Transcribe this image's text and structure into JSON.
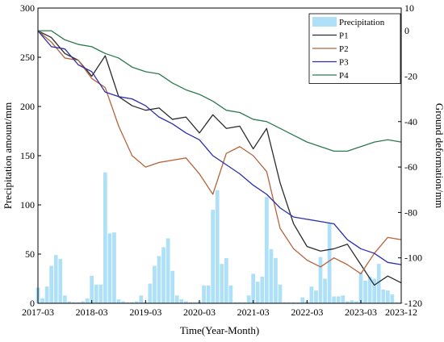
{
  "chart_data": {
    "type": "bar+line",
    "title": "",
    "xlabel": "Time(Year-Month)",
    "ylabel_left": "Precipitation amount/mm",
    "ylabel_right": "Ground deformation/mm",
    "ylim_left": [
      0,
      300
    ],
    "ylim_right": [
      -120,
      10
    ],
    "yticks_left": [
      0,
      50,
      100,
      150,
      200,
      250,
      300
    ],
    "yticks_right": [
      -120,
      -100,
      -80,
      -60,
      -40,
      -20,
      0,
      10
    ],
    "xlim": [
      "2017-03",
      "2023-12"
    ],
    "xticks": [
      "2017-03",
      "2018-03",
      "2019-03",
      "2020-03",
      "2021-03",
      "2022-03",
      "2023-03",
      "2023-12"
    ],
    "grid": false,
    "legend_position": "top-right",
    "bar_series": {
      "name": "Precipitation",
      "color": "#aee0f7",
      "x": [
        "2017-03",
        "2017-04",
        "2017-05",
        "2017-06",
        "2017-07",
        "2017-08",
        "2017-09",
        "2017-10",
        "2017-11",
        "2017-12",
        "2018-01",
        "2018-02",
        "2018-03",
        "2018-04",
        "2018-05",
        "2018-06",
        "2018-07",
        "2018-08",
        "2018-09",
        "2018-10",
        "2018-11",
        "2018-12",
        "2019-01",
        "2019-02",
        "2019-03",
        "2019-04",
        "2019-05",
        "2019-06",
        "2019-07",
        "2019-08",
        "2019-09",
        "2019-10",
        "2019-11",
        "2019-12",
        "2020-01",
        "2020-02",
        "2020-03",
        "2020-04",
        "2020-05",
        "2020-06",
        "2020-07",
        "2020-08",
        "2020-09",
        "2020-10",
        "2020-11",
        "2020-12",
        "2021-01",
        "2021-02",
        "2021-03",
        "2021-04",
        "2021-05",
        "2021-06",
        "2021-07",
        "2021-08",
        "2021-09",
        "2021-10",
        "2021-11",
        "2021-12",
        "2022-01",
        "2022-02",
        "2022-03",
        "2022-04",
        "2022-05",
        "2022-06",
        "2022-07",
        "2022-08",
        "2022-09",
        "2022-10",
        "2022-11",
        "2022-12",
        "2023-01",
        "2023-02",
        "2023-03",
        "2023-04",
        "2023-05",
        "2023-06",
        "2023-07",
        "2023-08",
        "2023-09",
        "2023-10",
        "2023-11",
        "2023-12"
      ],
      "values": [
        16,
        5,
        17,
        38,
        49,
        45,
        8,
        2,
        1,
        1,
        2,
        5,
        28,
        19,
        19,
        133,
        71,
        72,
        4,
        2,
        1,
        1,
        2,
        8,
        1,
        20,
        38,
        48,
        57,
        66,
        33,
        8,
        4,
        2,
        1,
        1,
        2,
        18,
        18,
        95,
        115,
        40,
        46,
        18,
        1,
        1,
        1,
        8,
        30,
        22,
        27,
        108,
        55,
        46,
        19,
        1,
        1,
        1,
        1,
        6,
        2,
        17,
        13,
        47,
        25,
        82,
        7,
        7,
        8,
        2,
        3,
        2,
        31,
        23,
        27,
        25,
        40,
        14,
        13,
        9,
        1,
        1
      ]
    },
    "line_series": [
      {
        "name": "P1",
        "color": "#2b2b2b",
        "x": [
          "2017-03",
          "2017-06",
          "2017-09",
          "2017-12",
          "2018-03",
          "2018-06",
          "2018-09",
          "2018-12",
          "2019-03",
          "2019-06",
          "2019-09",
          "2019-12",
          "2020-03",
          "2020-06",
          "2020-09",
          "2020-12",
          "2021-03",
          "2021-06",
          "2021-09",
          "2021-12",
          "2022-03",
          "2022-06",
          "2022-09",
          "2022-12",
          "2023-03",
          "2023-06",
          "2023-09",
          "2023-12"
        ],
        "values": [
          0,
          -3,
          -10,
          -13,
          -20,
          -11,
          -29,
          -33,
          -35,
          -34,
          -39,
          -38,
          -45,
          -37,
          -43,
          -42,
          -52,
          -43,
          -67,
          -85,
          -95,
          -97,
          -96,
          -94,
          -103,
          -112,
          -108,
          -111
        ]
      },
      {
        "name": "P2",
        "color": "#b5643c",
        "x": [
          "2017-03",
          "2017-06",
          "2017-09",
          "2017-12",
          "2018-03",
          "2018-06",
          "2018-09",
          "2018-12",
          "2019-03",
          "2019-06",
          "2019-09",
          "2019-12",
          "2020-03",
          "2020-06",
          "2020-09",
          "2020-12",
          "2021-03",
          "2021-06",
          "2021-09",
          "2021-12",
          "2022-03",
          "2022-06",
          "2022-09",
          "2022-12",
          "2023-03",
          "2023-06",
          "2023-09",
          "2023-12"
        ],
        "values": [
          0,
          -5,
          -12,
          -13,
          -21,
          -25,
          -42,
          -55,
          -60,
          -58,
          -57,
          -56,
          -63,
          -72,
          -54,
          -51,
          -55,
          -62,
          -87,
          -96,
          -101,
          -104,
          -100,
          -103,
          -107,
          -98,
          -91,
          -92
        ]
      },
      {
        "name": "P3",
        "color": "#2a2fa8",
        "x": [
          "2017-03",
          "2017-06",
          "2017-09",
          "2017-12",
          "2018-03",
          "2018-06",
          "2018-09",
          "2018-12",
          "2019-03",
          "2019-06",
          "2019-09",
          "2019-12",
          "2020-03",
          "2020-06",
          "2020-09",
          "2020-12",
          "2021-03",
          "2021-06",
          "2021-09",
          "2021-12",
          "2022-03",
          "2022-06",
          "2022-09",
          "2022-12",
          "2023-03",
          "2023-06",
          "2023-09",
          "2023-12"
        ],
        "values": [
          0,
          -7,
          -8,
          -15,
          -18,
          -27,
          -29,
          -30,
          -33,
          -38,
          -41,
          -45,
          -48,
          -55,
          -59,
          -63,
          -68,
          -72,
          -78,
          -82,
          -83,
          -84,
          -85,
          -92,
          -96,
          -98,
          -102,
          -103
        ]
      },
      {
        "name": "P4",
        "color": "#2c7a4e",
        "x": [
          "2017-03",
          "2017-06",
          "2017-09",
          "2017-12",
          "2018-03",
          "2018-06",
          "2018-09",
          "2018-12",
          "2019-03",
          "2019-06",
          "2019-09",
          "2019-12",
          "2020-03",
          "2020-06",
          "2020-09",
          "2020-12",
          "2021-03",
          "2021-06",
          "2021-09",
          "2021-12",
          "2022-03",
          "2022-06",
          "2022-09",
          "2022-12",
          "2023-03",
          "2023-06",
          "2023-09",
          "2023-12"
        ],
        "values": [
          0,
          0,
          -4,
          -6,
          -7,
          -10,
          -12,
          -16,
          -18,
          -19,
          -23,
          -26,
          -28,
          -31,
          -35,
          -36,
          -39,
          -40,
          -43,
          -46,
          -49,
          -51,
          -53,
          -53,
          -51,
          -49,
          -48,
          -49
        ]
      }
    ]
  }
}
